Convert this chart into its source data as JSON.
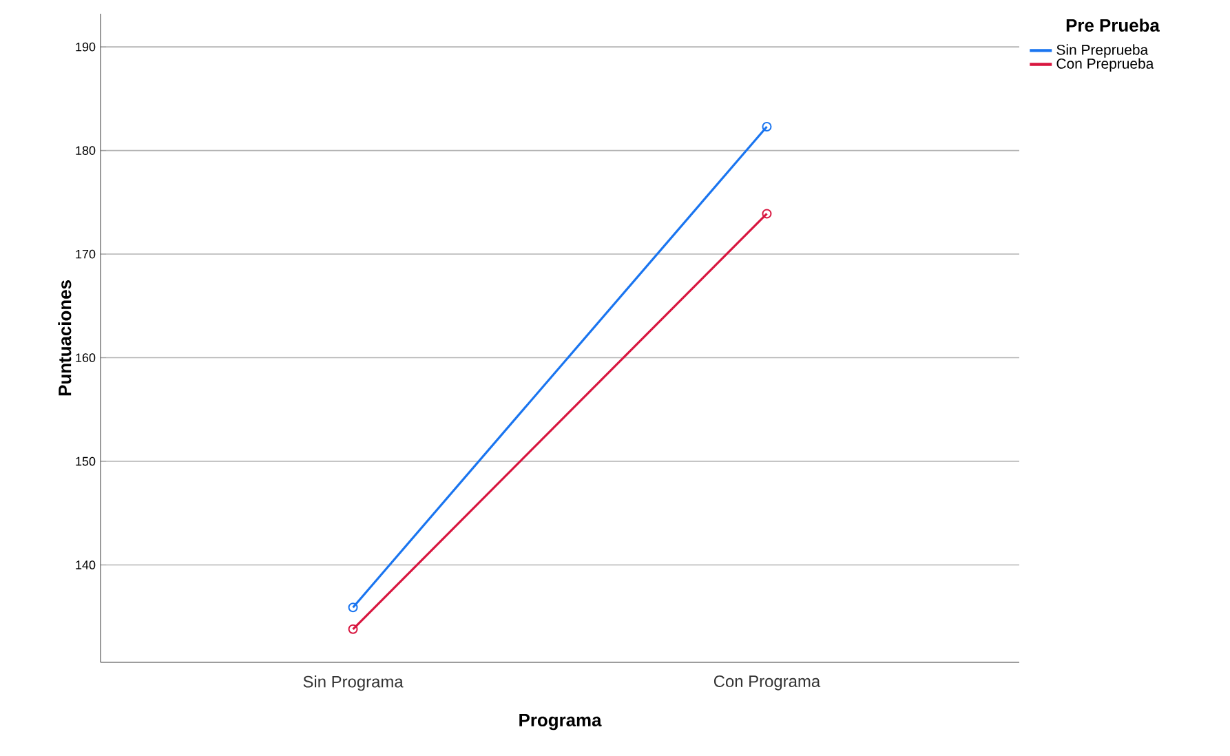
{
  "chart_data": {
    "type": "line",
    "xlabel": "Programa",
    "ylabel": "Puntuaciones",
    "legend_title": "Pre Prueba",
    "categories": [
      "Sin Programa",
      "Con Programa"
    ],
    "series": [
      {
        "name": "Sin Preprueba",
        "color": "#1a75f0",
        "values": [
          135.9,
          182.3
        ]
      },
      {
        "name": "Con Preprueba",
        "color": "#d8163f",
        "values": [
          133.8,
          173.9
        ]
      }
    ],
    "ylim": [
      130.6,
      193.2
    ],
    "yticks": [
      140,
      150,
      160,
      170,
      180,
      190
    ],
    "grid": "y",
    "legend": "top right",
    "marker": "circle",
    "line_style": "solid"
  }
}
